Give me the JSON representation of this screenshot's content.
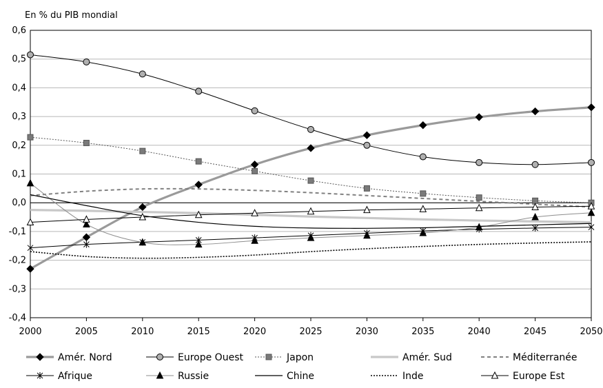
{
  "chart_data": {
    "type": "line",
    "ylabel": "En % du PIB mondial",
    "xlabel": "",
    "title": "",
    "x": [
      2000,
      2005,
      2010,
      2015,
      2020,
      2025,
      2030,
      2035,
      2040,
      2045,
      2050
    ],
    "xlim": [
      2000,
      2050
    ],
    "ylim": [
      -0.4,
      0.6
    ],
    "y_ticks": [
      "-0,4",
      "-0,3",
      "-0,2",
      "-0,1",
      "0,0",
      "0,1",
      "0,2",
      "0,3",
      "0,4",
      "0,5",
      "0,6"
    ],
    "x_ticks": [
      "2000",
      "2005",
      "2010",
      "2015",
      "2020",
      "2025",
      "2030",
      "2035",
      "2040",
      "2045",
      "2050"
    ],
    "grid": "horizontal",
    "legend_position": "bottom",
    "series": [
      {
        "name": "Amér. Nord",
        "color": "#9a9a9a",
        "marker": "diamond",
        "values": [
          -0.23,
          -0.12,
          -0.015,
          0.063,
          0.133,
          0.19,
          0.235,
          0.27,
          0.298,
          0.318,
          0.332
        ]
      },
      {
        "name": "Europe Ouest",
        "color": "#000000",
        "marker": "circle",
        "values": [
          0.515,
          0.49,
          0.448,
          0.388,
          0.32,
          0.255,
          0.2,
          0.16,
          0.14,
          0.133,
          0.14
        ]
      },
      {
        "name": "Japon",
        "color": "#555555",
        "marker": "square",
        "values": [
          0.228,
          0.208,
          0.18,
          0.144,
          0.11,
          0.077,
          0.05,
          0.032,
          0.018,
          0.007,
          0.0
        ]
      },
      {
        "name": "Amér. Sud",
        "color": "#c8c8c8",
        "marker": "none",
        "values": [
          -0.025,
          -0.028,
          -0.032,
          -0.036,
          -0.042,
          -0.048,
          -0.053,
          -0.058,
          -0.062,
          -0.065,
          -0.068
        ]
      },
      {
        "name": "Méditerranée",
        "color": "#808080",
        "marker": "none",
        "values": [
          0.025,
          0.04,
          0.048,
          0.048,
          0.043,
          0.035,
          0.025,
          0.015,
          0.005,
          -0.005,
          -0.015
        ]
      },
      {
        "name": "Afrique",
        "color": "#000000",
        "marker": "star",
        "values": [
          -0.157,
          -0.145,
          -0.137,
          -0.13,
          -0.122,
          -0.114,
          -0.106,
          -0.098,
          -0.092,
          -0.088,
          -0.085
        ]
      },
      {
        "name": "Russie",
        "color": "#8c8c8c",
        "marker": "triangle-filled",
        "values": [
          0.068,
          -0.075,
          -0.138,
          -0.145,
          -0.132,
          -0.122,
          -0.114,
          -0.105,
          -0.085,
          -0.05,
          -0.035
        ]
      },
      {
        "name": "Chine",
        "color": "#000000",
        "marker": "none",
        "values": [
          0.028,
          -0.01,
          -0.045,
          -0.068,
          -0.082,
          -0.088,
          -0.089,
          -0.087,
          -0.082,
          -0.077,
          -0.072
        ]
      },
      {
        "name": "Inde",
        "color": "#000000",
        "marker": "none",
        "values": [
          -0.17,
          -0.187,
          -0.193,
          -0.19,
          -0.182,
          -0.17,
          -0.16,
          -0.152,
          -0.145,
          -0.14,
          -0.136
        ]
      },
      {
        "name": "Europe Est",
        "color": "#000000",
        "marker": "triangle-open",
        "values": [
          -0.068,
          -0.058,
          -0.05,
          -0.042,
          -0.036,
          -0.03,
          -0.025,
          -0.022,
          -0.018,
          -0.015,
          -0.012
        ]
      }
    ]
  }
}
